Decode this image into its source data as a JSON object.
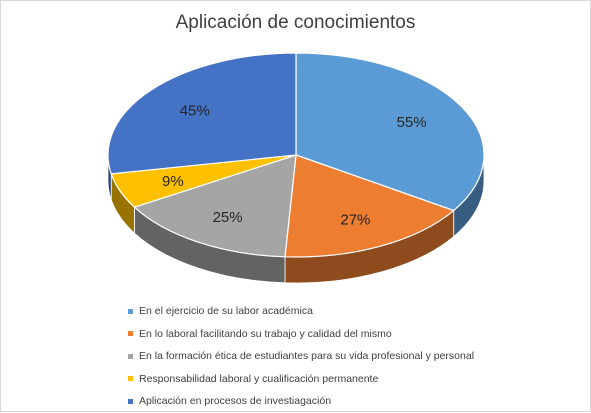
{
  "chart_data": {
    "type": "pie",
    "title": "Aplicación de conocimientos",
    "categories": [
      "En el ejercicio de su labor académica",
      "En lo laboral facilitando su trabajo y calidad del mismo",
      "En la formación ética de estudiantes para su vida profesional y personal",
      "Responsabilidad laboral y cualificación permanente",
      "Aplicación en procesos de investiagación"
    ],
    "values": [
      55,
      27,
      25,
      9,
      45
    ],
    "data_labels": [
      "55%",
      "27%",
      "25%",
      "9%",
      "45%"
    ],
    "colors": [
      "#5b9bd5",
      "#ed7d31",
      "#a5a5a5",
      "#ffc000",
      "#4472c4"
    ],
    "legend_position": "bottom",
    "style": "3d-exploded-none"
  }
}
